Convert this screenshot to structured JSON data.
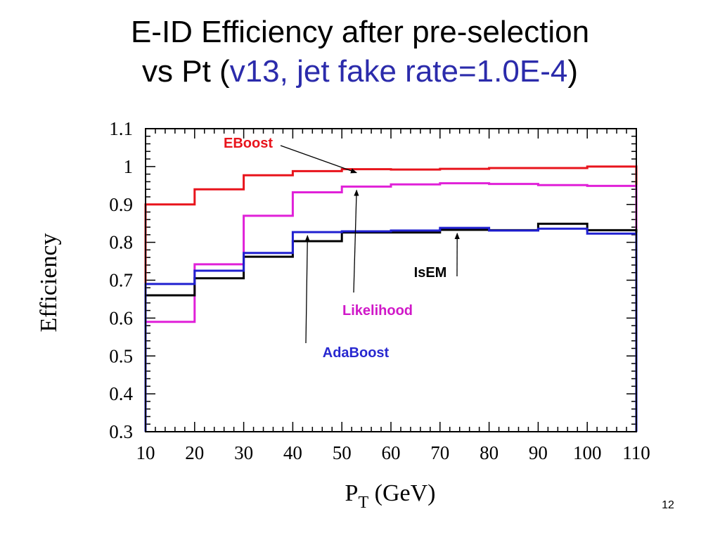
{
  "title": {
    "line1": "E-ID Efficiency after pre-selection",
    "line2_prefix": "vs Pt (",
    "line2_accent": "v13, jet fake rate=1.0E-4",
    "line2_suffix": ")"
  },
  "page_number": "12",
  "colors": {
    "accent": "#2b2bab"
  },
  "chart_data": {
    "type": "line",
    "step": true,
    "xlabel": "P",
    "xlabel_subscript": "T",
    "xlabel_suffix": " (GeV)",
    "ylabel": "Efficiency",
    "xlim": [
      10,
      110
    ],
    "ylim": [
      0.3,
      1.1
    ],
    "x_ticks": [
      "10",
      "20",
      "30",
      "40",
      "50",
      "60",
      "70",
      "80",
      "90",
      "100",
      "110"
    ],
    "y_ticks": [
      "0.3",
      "0.4",
      "0.5",
      "0.6",
      "0.7",
      "0.8",
      "0.9",
      "1",
      "1.1"
    ],
    "bin_edges": [
      10,
      20,
      30,
      40,
      50,
      60,
      70,
      80,
      90,
      100,
      110
    ],
    "series": [
      {
        "name": "EBoost",
        "color": "#e8141c",
        "values": [
          0.9,
          0.94,
          0.977,
          0.988,
          0.993,
          0.992,
          0.994,
          0.996,
          0.996,
          1.0
        ]
      },
      {
        "name": "Likelihood",
        "color": "#e020d8",
        "values": [
          0.59,
          0.742,
          0.87,
          0.932,
          0.947,
          0.953,
          0.956,
          0.954,
          0.951,
          0.949
        ]
      },
      {
        "name": "IsEM",
        "color": "#000000",
        "values": [
          0.66,
          0.705,
          0.762,
          0.803,
          0.826,
          0.826,
          0.833,
          0.832,
          0.849,
          0.832
        ]
      },
      {
        "name": "AdaBoost",
        "color": "#2020d0",
        "values": [
          0.69,
          0.725,
          0.772,
          0.827,
          0.829,
          0.831,
          0.838,
          0.831,
          0.836,
          0.823
        ]
      }
    ],
    "annotations": [
      {
        "text": "EBoost",
        "series": "EBoost",
        "color": "#e8141c",
        "target": [
          53,
          0.993
        ]
      },
      {
        "text": "IsEM",
        "series": "IsEM",
        "color": "#000000",
        "target": [
          73.5,
          0.833
        ]
      },
      {
        "text": "Likelihood",
        "series": "Likelihood",
        "color": "#d018c8",
        "target": [
          53,
          0.947
        ]
      },
      {
        "text": "AdaBoost",
        "series": "AdaBoost",
        "color": "#2828d0",
        "target": [
          43,
          0.827
        ]
      }
    ]
  }
}
